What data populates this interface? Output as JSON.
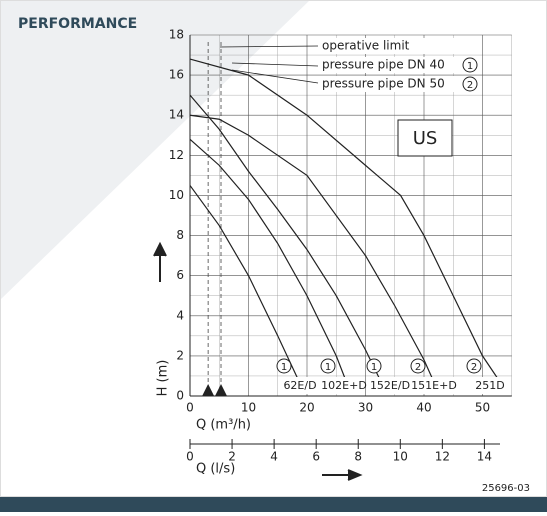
{
  "header": {
    "title": "PERFORMANCE"
  },
  "chart_data": {
    "type": "line",
    "xlabel": "Q (m³/h)",
    "ylabel": "H (m)",
    "x2label": "Q (l/s)",
    "xlim": [
      0,
      55
    ],
    "ylim": [
      0,
      18
    ],
    "x2lim": [
      0,
      15.3
    ],
    "xticks": [
      0,
      10,
      20,
      30,
      40,
      50
    ],
    "yticks": [
      0,
      2,
      4,
      6,
      8,
      10,
      12,
      14,
      16,
      18
    ],
    "x2ticks": [
      0,
      2,
      4,
      6,
      8,
      10,
      12,
      14
    ],
    "x_minor_grid": [
      5,
      15,
      25,
      35,
      45,
      55
    ],
    "y_minor_grid": [
      1,
      3,
      5,
      7,
      9,
      11,
      13,
      15,
      17
    ],
    "grid": true,
    "limit_x": [
      3.1,
      5.3
    ],
    "legend": [
      {
        "marker": "",
        "text": "operative limit"
      },
      {
        "marker": "1",
        "text": "pressure pipe DN 40"
      },
      {
        "marker": "2",
        "text": "pressure pipe DN 50"
      }
    ],
    "region": "US",
    "series": [
      {
        "name": "62E/D",
        "pipe": "1",
        "color": "#222",
        "x": [
          0,
          5,
          10,
          15,
          19
        ],
        "values": [
          10.5,
          8.5,
          6,
          3,
          0.5
        ]
      },
      {
        "name": "102E+D",
        "pipe": "1",
        "color": "#222",
        "x": [
          0,
          5,
          10,
          15,
          20,
          25,
          27
        ],
        "values": [
          12.8,
          11.5,
          9.8,
          7.6,
          5,
          2,
          0.5
        ]
      },
      {
        "name": "152E/D",
        "pipe": "1",
        "color": "#222",
        "x": [
          0,
          5,
          10,
          15,
          20,
          25,
          30,
          33
        ],
        "values": [
          15,
          13.3,
          11.2,
          9.3,
          7.3,
          5,
          2.3,
          0.5
        ]
      },
      {
        "name": "151E+D",
        "pipe": "2",
        "color": "#222",
        "x": [
          0,
          5,
          10,
          20,
          30,
          35,
          40,
          42
        ],
        "values": [
          14,
          13.8,
          13,
          11,
          7,
          4.5,
          1.8,
          0.5
        ]
      },
      {
        "name": "251D",
        "pipe": "2",
        "color": "#222",
        "x": [
          0,
          10,
          20,
          30,
          36,
          40,
          45,
          50,
          53
        ],
        "values": [
          16.8,
          16,
          14,
          11.5,
          10,
          8,
          5,
          2,
          0.7
        ]
      }
    ]
  },
  "footer": {
    "code": "25696-03"
  }
}
